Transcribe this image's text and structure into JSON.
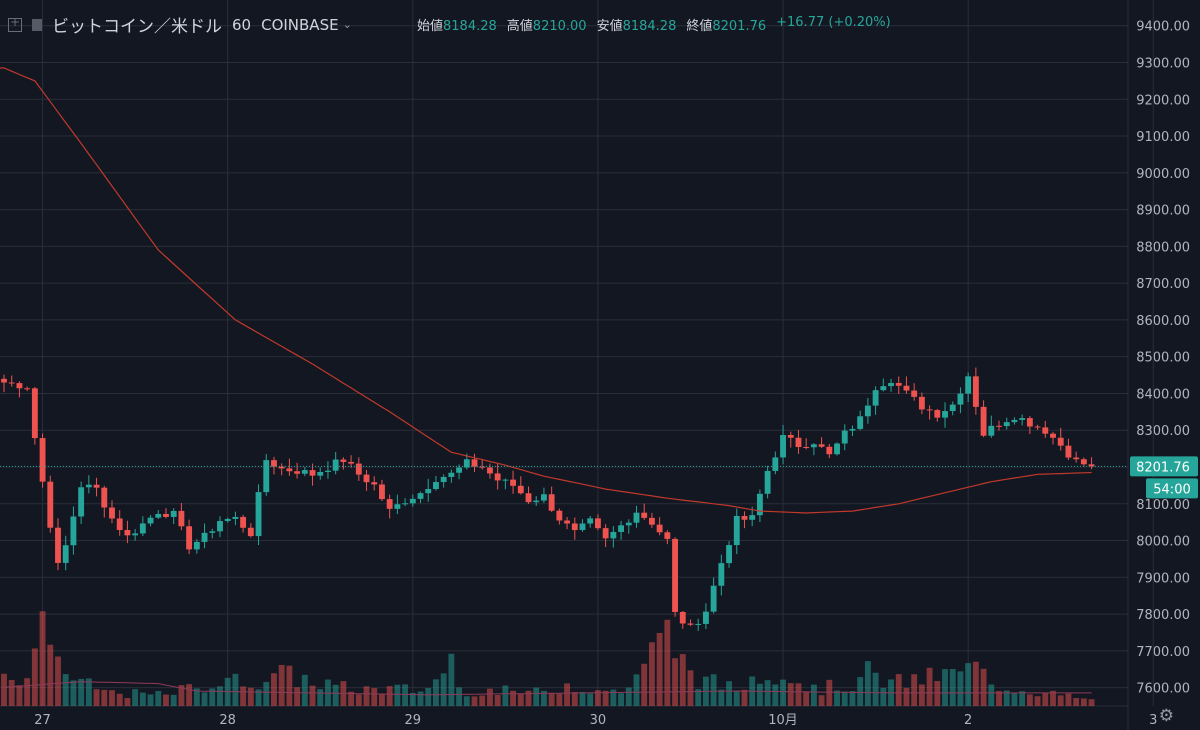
{
  "header": {
    "symbol": "ビットコイン／米ドル",
    "interval": "60",
    "exchange": "COINBASE",
    "ohlc": [
      {
        "label": "始値",
        "value": "8184.28"
      },
      {
        "label": "高値",
        "value": "8210.00"
      },
      {
        "label": "安値",
        "value": "8184.28"
      },
      {
        "label": "終値",
        "value": "8201.76"
      }
    ],
    "change": "+16.77 (+0.20%)"
  },
  "colors": {
    "background": "#131722",
    "grid": "#2a2e39",
    "up": "#26a69a",
    "down": "#ef5350",
    "ma": "#c0392b",
    "axis_text": "#b2b5be"
  },
  "chart_data": {
    "type": "candlestick",
    "ylim": [
      7550,
      9470
    ],
    "y_ticks": [
      "9400.00",
      "9300.00",
      "9200.00",
      "9100.00",
      "9000.00",
      "8900.00",
      "8800.00",
      "8700.00",
      "8600.00",
      "8500.00",
      "8400.00",
      "8300.00",
      "8200.00",
      "8100.00",
      "8000.00",
      "7900.00",
      "7800.00",
      "7700.00",
      "7600.00"
    ],
    "x_ticks": [
      "27",
      "28",
      "29",
      "30",
      "10月",
      "2",
      "3"
    ],
    "x_tick_bars": [
      5,
      29,
      53,
      77,
      101,
      125,
      149
    ],
    "last_price_label": "8201.76",
    "countdown_label": "54:00",
    "last_price": 8201.76,
    "bar_count": 142,
    "checkpoints": [
      [
        0,
        8430
      ],
      [
        3,
        8420
      ],
      [
        4,
        8280
      ],
      [
        5,
        8160
      ],
      [
        7,
        7930
      ],
      [
        8,
        7985
      ],
      [
        10,
        8150
      ],
      [
        12,
        8140
      ],
      [
        14,
        8060
      ],
      [
        16,
        8010
      ],
      [
        18,
        8045
      ],
      [
        20,
        8080
      ],
      [
        22,
        8070
      ],
      [
        24,
        7985
      ],
      [
        26,
        8010
      ],
      [
        28,
        8055
      ],
      [
        30,
        8060
      ],
      [
        32,
        8020
      ],
      [
        34,
        8220
      ],
      [
        36,
        8195
      ],
      [
        38,
        8190
      ],
      [
        40,
        8180
      ],
      [
        42,
        8200
      ],
      [
        44,
        8220
      ],
      [
        46,
        8180
      ],
      [
        48,
        8150
      ],
      [
        50,
        8080
      ],
      [
        52,
        8110
      ],
      [
        54,
        8130
      ],
      [
        56,
        8170
      ],
      [
        58,
        8180
      ],
      [
        60,
        8210
      ],
      [
        62,
        8200
      ],
      [
        64,
        8165
      ],
      [
        66,
        8150
      ],
      [
        68,
        8110
      ],
      [
        70,
        8120
      ],
      [
        72,
        8060
      ],
      [
        74,
        8020
      ],
      [
        76,
        8050
      ],
      [
        78,
        8000
      ],
      [
        80,
        8040
      ],
      [
        82,
        8080
      ],
      [
        84,
        8050
      ],
      [
        86,
        8000
      ],
      [
        87,
        7800
      ],
      [
        89,
        7760
      ],
      [
        91,
        7810
      ],
      [
        93,
        7940
      ],
      [
        95,
        8055
      ],
      [
        97,
        8060
      ],
      [
        99,
        8190
      ],
      [
        101,
        8280
      ],
      [
        103,
        8260
      ],
      [
        105,
        8270
      ],
      [
        107,
        8230
      ],
      [
        109,
        8290
      ],
      [
        111,
        8330
      ],
      [
        113,
        8420
      ],
      [
        115,
        8440
      ],
      [
        117,
        8400
      ],
      [
        119,
        8365
      ],
      [
        121,
        8345
      ],
      [
        123,
        8370
      ],
      [
        125,
        8450
      ],
      [
        127,
        8290
      ],
      [
        129,
        8320
      ],
      [
        131,
        8340
      ],
      [
        133,
        8320
      ],
      [
        135,
        8300
      ],
      [
        137,
        8260
      ],
      [
        139,
        8215
      ],
      [
        141,
        8202
      ]
    ],
    "volume_checkpoints": [
      [
        0,
        0.25
      ],
      [
        3,
        0.3
      ],
      [
        4,
        0.55
      ],
      [
        5,
        0.65
      ],
      [
        6,
        0.8
      ],
      [
        7,
        0.45
      ],
      [
        8,
        0.3
      ],
      [
        10,
        0.2
      ],
      [
        14,
        0.12
      ],
      [
        20,
        0.1
      ],
      [
        27,
        0.2
      ],
      [
        34,
        0.25
      ],
      [
        35,
        0.3
      ],
      [
        45,
        0.15
      ],
      [
        55,
        0.15
      ],
      [
        58,
        0.45
      ],
      [
        59,
        0.15
      ],
      [
        70,
        0.12
      ],
      [
        73,
        0.2
      ],
      [
        80,
        0.12
      ],
      [
        86,
        0.65
      ],
      [
        88,
        0.4
      ],
      [
        90,
        0.25
      ],
      [
        95,
        0.15
      ],
      [
        99,
        0.35
      ],
      [
        101,
        0.3
      ],
      [
        105,
        0.15
      ],
      [
        110,
        0.2
      ],
      [
        112,
        0.3
      ],
      [
        115,
        0.2
      ],
      [
        124,
        0.3
      ],
      [
        126,
        0.35
      ],
      [
        128,
        0.2
      ],
      [
        135,
        0.12
      ],
      [
        141,
        0.05
      ]
    ],
    "ma_checkpoints": [
      [
        0,
        9285
      ],
      [
        4,
        9250
      ],
      [
        10,
        9080
      ],
      [
        20,
        8790
      ],
      [
        30,
        8600
      ],
      [
        40,
        8480
      ],
      [
        50,
        8350
      ],
      [
        58,
        8240
      ],
      [
        65,
        8205
      ],
      [
        70,
        8175
      ],
      [
        78,
        8140
      ],
      [
        86,
        8115
      ],
      [
        94,
        8095
      ],
      [
        98,
        8080
      ],
      [
        104,
        8075
      ],
      [
        110,
        8080
      ],
      [
        116,
        8100
      ],
      [
        122,
        8130
      ],
      [
        128,
        8160
      ],
      [
        134,
        8180
      ],
      [
        141,
        8185
      ]
    ],
    "volume_ma_checkpoints": [
      [
        0,
        0.1
      ],
      [
        10,
        0.13
      ],
      [
        20,
        0.12
      ],
      [
        25,
        0.08
      ],
      [
        40,
        0.07
      ],
      [
        55,
        0.06
      ],
      [
        75,
        0.07
      ],
      [
        95,
        0.08
      ],
      [
        115,
        0.07
      ],
      [
        141,
        0.07
      ]
    ]
  }
}
